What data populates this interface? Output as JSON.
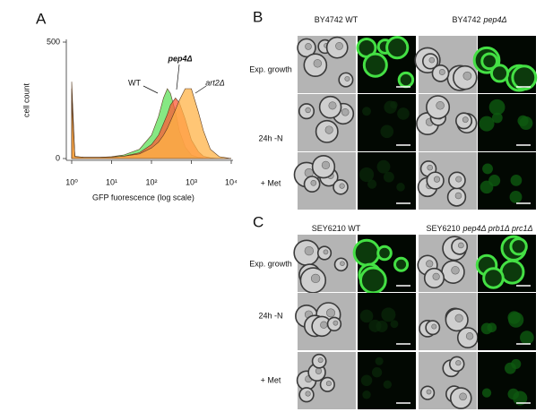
{
  "panel_labels": [
    "A",
    "B",
    "C"
  ],
  "chart_data": {
    "type": "area",
    "y_label": "cell count",
    "x_label": "GFP fuorescence (log scale)",
    "x": [
      1,
      1.2,
      2,
      5,
      10,
      20,
      50,
      100,
      150,
      200,
      250,
      300,
      400,
      500,
      700,
      1000,
      1500,
      2000,
      3000,
      5000,
      10000
    ],
    "series": [
      {
        "name": "WT",
        "color": "#5ee05a",
        "values": [
          330,
          10,
          5,
          5,
          8,
          15,
          40,
          100,
          180,
          260,
          300,
          280,
          200,
          120,
          50,
          15,
          5,
          2,
          0,
          0,
          0
        ]
      },
      {
        "name": "pep4Δ",
        "color": "#ff5a36",
        "values": [
          300,
          8,
          5,
          5,
          6,
          10,
          25,
          60,
          100,
          150,
          190,
          230,
          260,
          240,
          170,
          80,
          30,
          10,
          3,
          0,
          0
        ]
      },
      {
        "name": "art2Δ",
        "color": "#ffb347",
        "values": [
          250,
          8,
          5,
          5,
          6,
          10,
          20,
          45,
          70,
          100,
          130,
          160,
          210,
          250,
          300,
          300,
          200,
          120,
          40,
          8,
          0
        ]
      }
    ],
    "log_x": true,
    "xlim": [
      1,
      10000
    ],
    "xticks": [
      {
        "value": 1,
        "label": "10⁰"
      },
      {
        "value": 10,
        "label": "10¹"
      },
      {
        "value": 100,
        "label": "10²"
      },
      {
        "value": 1000,
        "label": "10³"
      },
      {
        "value": 10000,
        "label": "10⁴"
      }
    ],
    "ylim": [
      0,
      500
    ],
    "yticks": [
      0,
      500
    ]
  },
  "panel_b": {
    "columns": [
      [
        "BY4742 WT"
      ],
      [
        "BY4742",
        "pep4Δ"
      ]
    ],
    "rows": [
      "Exp. growth",
      "24h -N",
      "+ Met"
    ]
  },
  "panel_c": {
    "columns": [
      [
        "SEY6210 WT"
      ],
      [
        "SEY6210",
        "pep4Δ prb1Δ prc1Δ"
      ]
    ],
    "rows": [
      "Exp. growth",
      "24h -N",
      "+ Met"
    ]
  }
}
